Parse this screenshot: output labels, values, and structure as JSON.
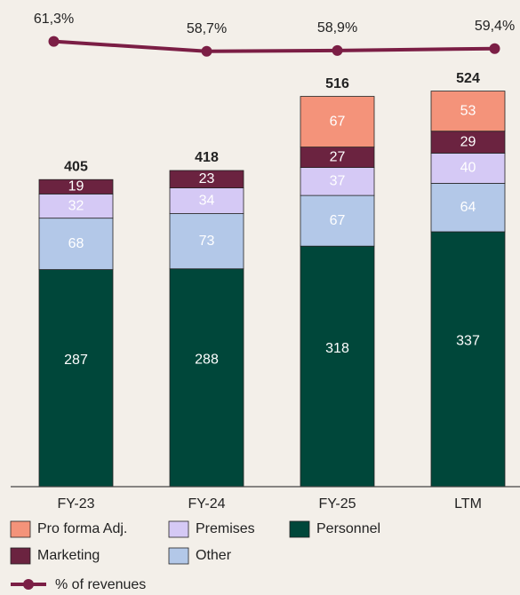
{
  "chart_data": {
    "type": "bar",
    "categories": [
      "FY-23",
      "FY-24",
      "FY-25",
      "LTM"
    ],
    "ylim": [
      0,
      600
    ],
    "series": [
      {
        "name": "Personnel",
        "color": "#00473a",
        "label_color": "#ffffff",
        "values": [
          287,
          288,
          318,
          337
        ]
      },
      {
        "name": "Other",
        "color": "#b3c8e8",
        "label_color": "#ffffff",
        "values": [
          68,
          73,
          67,
          64
        ]
      },
      {
        "name": "Premises",
        "color": "#d5c9f5",
        "label_color": "#ffffff",
        "values": [
          32,
          34,
          37,
          40
        ]
      },
      {
        "name": "Marketing",
        "color": "#6b2340",
        "label_color": "#ffffff",
        "values": [
          19,
          23,
          27,
          29
        ]
      },
      {
        "name": "Pro forma Adj.",
        "color": "#f4937a",
        "label_color": "#ffffff",
        "values": [
          null,
          null,
          67,
          53
        ]
      }
    ],
    "totals": [
      405,
      418,
      516,
      524
    ],
    "line": {
      "name": "% of revenues",
      "color": "#7b1e45",
      "axis": "y2",
      "values": [
        61.3,
        58.7,
        58.9,
        59.4
      ],
      "value_labels": [
        "61,3%",
        "58,7%",
        "58,9%",
        "59,4%"
      ]
    },
    "y2lim": [
      50,
      64
    ]
  }
}
